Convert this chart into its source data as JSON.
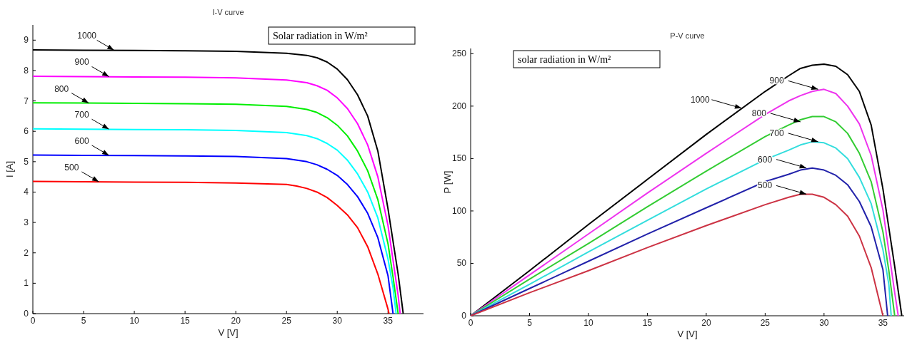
{
  "chart_data": [
    {
      "type": "line",
      "title": "I-V curve",
      "xlabel": "V [V]",
      "ylabel": "I [A]",
      "xlim": [
        0,
        38.5
      ],
      "ylim": [
        0,
        9.5
      ],
      "xticks": [
        0,
        5,
        10,
        15,
        20,
        25,
        30,
        35
      ],
      "yticks": [
        0,
        1,
        2,
        3,
        4,
        5,
        6,
        7,
        8,
        9
      ],
      "grid": false,
      "annotations": [
        "Solar radiation in W/m²",
        {
          "text": "1000",
          "x": 8,
          "y": 8.67
        },
        {
          "text": "900",
          "x": 7.5,
          "y": 7.8
        },
        {
          "text": "800",
          "x": 5.5,
          "y": 6.93
        },
        {
          "text": "700",
          "x": 7.5,
          "y": 6.07
        },
        {
          "text": "600",
          "x": 7.5,
          "y": 5.21
        },
        {
          "text": "500",
          "x": 6.5,
          "y": 4.34
        }
      ],
      "series": [
        {
          "color": "#000000",
          "x": [
            0,
            5,
            10,
            15,
            20,
            25,
            27,
            28,
            29,
            30,
            31,
            32,
            33,
            34,
            35,
            36,
            36.5
          ],
          "values": [
            8.68,
            8.67,
            8.66,
            8.65,
            8.63,
            8.57,
            8.5,
            8.42,
            8.28,
            8.05,
            7.7,
            7.2,
            6.5,
            5.35,
            3.45,
            1.3,
            0
          ]
        },
        {
          "color": "#ff00ff",
          "x": [
            0,
            5,
            10,
            15,
            20,
            25,
            27,
            28,
            29,
            30,
            31,
            32,
            33,
            34,
            35,
            36,
            36.2
          ],
          "values": [
            7.81,
            7.8,
            7.79,
            7.78,
            7.76,
            7.69,
            7.6,
            7.5,
            7.35,
            7.1,
            6.75,
            6.25,
            5.55,
            4.5,
            2.9,
            0.6,
            0
          ]
        },
        {
          "color": "#00ee00",
          "x": [
            0,
            5,
            10,
            15,
            20,
            25,
            27,
            28,
            29,
            30,
            31,
            32,
            33,
            34,
            35,
            35.5,
            36
          ],
          "values": [
            6.94,
            6.93,
            6.92,
            6.91,
            6.89,
            6.82,
            6.72,
            6.62,
            6.45,
            6.2,
            5.85,
            5.35,
            4.7,
            3.75,
            2.3,
            1.2,
            0
          ]
        },
        {
          "color": "#00ffff",
          "x": [
            0,
            5,
            10,
            15,
            20,
            25,
            27,
            28,
            29,
            30,
            31,
            32,
            33,
            34,
            35,
            35.5,
            35.8
          ],
          "values": [
            6.08,
            6.07,
            6.06,
            6.05,
            6.03,
            5.96,
            5.86,
            5.76,
            5.6,
            5.38,
            5.05,
            4.6,
            4,
            3.15,
            1.8,
            0.85,
            0
          ]
        },
        {
          "color": "#0000ff",
          "x": [
            0,
            5,
            10,
            15,
            20,
            25,
            27,
            28,
            29,
            30,
            31,
            32,
            33,
            34,
            35,
            35.5
          ],
          "values": [
            5.22,
            5.21,
            5.2,
            5.19,
            5.17,
            5.1,
            5,
            4.9,
            4.75,
            4.55,
            4.25,
            3.85,
            3.3,
            2.5,
            1.25,
            0
          ]
        },
        {
          "color": "#ff0000",
          "x": [
            0,
            5,
            10,
            15,
            20,
            25,
            26,
            27,
            28,
            29,
            30,
            31,
            32,
            33,
            34,
            35,
            35.1
          ],
          "values": [
            4.35,
            4.34,
            4.33,
            4.32,
            4.3,
            4.25,
            4.2,
            4.12,
            4,
            3.82,
            3.56,
            3.25,
            2.83,
            2.2,
            1.3,
            0.15,
            0
          ]
        }
      ]
    },
    {
      "type": "line",
      "title": "P-V curve",
      "xlabel": "V [V]",
      "ylabel": "P [W]",
      "xlim": [
        0,
        36.8
      ],
      "ylim": [
        0,
        255
      ],
      "xticks": [
        0,
        5,
        10,
        15,
        20,
        25,
        30,
        35
      ],
      "yticks": [
        0,
        50,
        100,
        150,
        200,
        250
      ],
      "grid": false,
      "annotations": [
        "solar radiation in W/m²",
        {
          "text": "1000",
          "x": 23,
          "y": 198
        },
        {
          "text": "900",
          "x": 29.5,
          "y": 216
        },
        {
          "text": "800",
          "x": 28,
          "y": 185
        },
        {
          "text": "700",
          "x": 29.5,
          "y": 166
        },
        {
          "text": "600",
          "x": 28.5,
          "y": 141
        },
        {
          "text": "500",
          "x": 28.5,
          "y": 116
        }
      ],
      "series": [
        {
          "color": "#000000",
          "x": [
            0,
            5,
            10,
            15,
            20,
            25,
            27,
            28,
            29,
            30,
            31,
            32,
            33,
            34,
            35,
            36,
            36.6
          ],
          "values": [
            0,
            43,
            87,
            130,
            173,
            214,
            229,
            236,
            239,
            240,
            238,
            230,
            214,
            182,
            121,
            47,
            0
          ]
        },
        {
          "color": "#ee33ee",
          "x": [
            0,
            5,
            10,
            15,
            20,
            25,
            27,
            28,
            29,
            30,
            31,
            32,
            33,
            34,
            35,
            36,
            36.3
          ],
          "values": [
            0,
            39,
            78,
            117,
            155,
            192,
            205,
            210,
            214,
            216,
            212,
            200,
            183,
            153,
            101,
            22,
            0
          ]
        },
        {
          "color": "#33cc33",
          "x": [
            0,
            5,
            10,
            15,
            20,
            25,
            27,
            28,
            29,
            30,
            31,
            32,
            33,
            34,
            35,
            35.5,
            36
          ],
          "values": [
            0,
            35,
            69,
            104,
            138,
            171,
            182,
            187,
            190,
            190,
            185,
            174,
            155,
            128,
            80,
            43,
            0
          ]
        },
        {
          "color": "#33dddd",
          "x": [
            0,
            5,
            10,
            15,
            20,
            25,
            27,
            28,
            29,
            30,
            31,
            32,
            33,
            34,
            35,
            35.5,
            35.7
          ],
          "values": [
            0,
            30,
            61,
            91,
            121,
            149,
            158,
            163,
            166,
            165,
            160,
            150,
            132,
            107,
            63,
            30,
            0
          ]
        },
        {
          "color": "#2222aa",
          "x": [
            0,
            5,
            10,
            15,
            20,
            25,
            27,
            28,
            29,
            30,
            31,
            32,
            33,
            34,
            35,
            35.4
          ],
          "values": [
            0,
            26,
            52,
            78,
            103,
            128,
            135,
            139,
            141,
            139,
            134,
            125,
            109,
            85,
            44,
            0
          ]
        },
        {
          "color": "#cc3344",
          "x": [
            0,
            5,
            10,
            15,
            20,
            25,
            27,
            28,
            29,
            30,
            31,
            32,
            33,
            34,
            35
          ],
          "values": [
            0,
            22,
            43,
            65,
            86,
            106,
            113,
            116,
            116,
            113,
            106,
            95,
            76,
            46,
            0
          ]
        }
      ]
    }
  ]
}
